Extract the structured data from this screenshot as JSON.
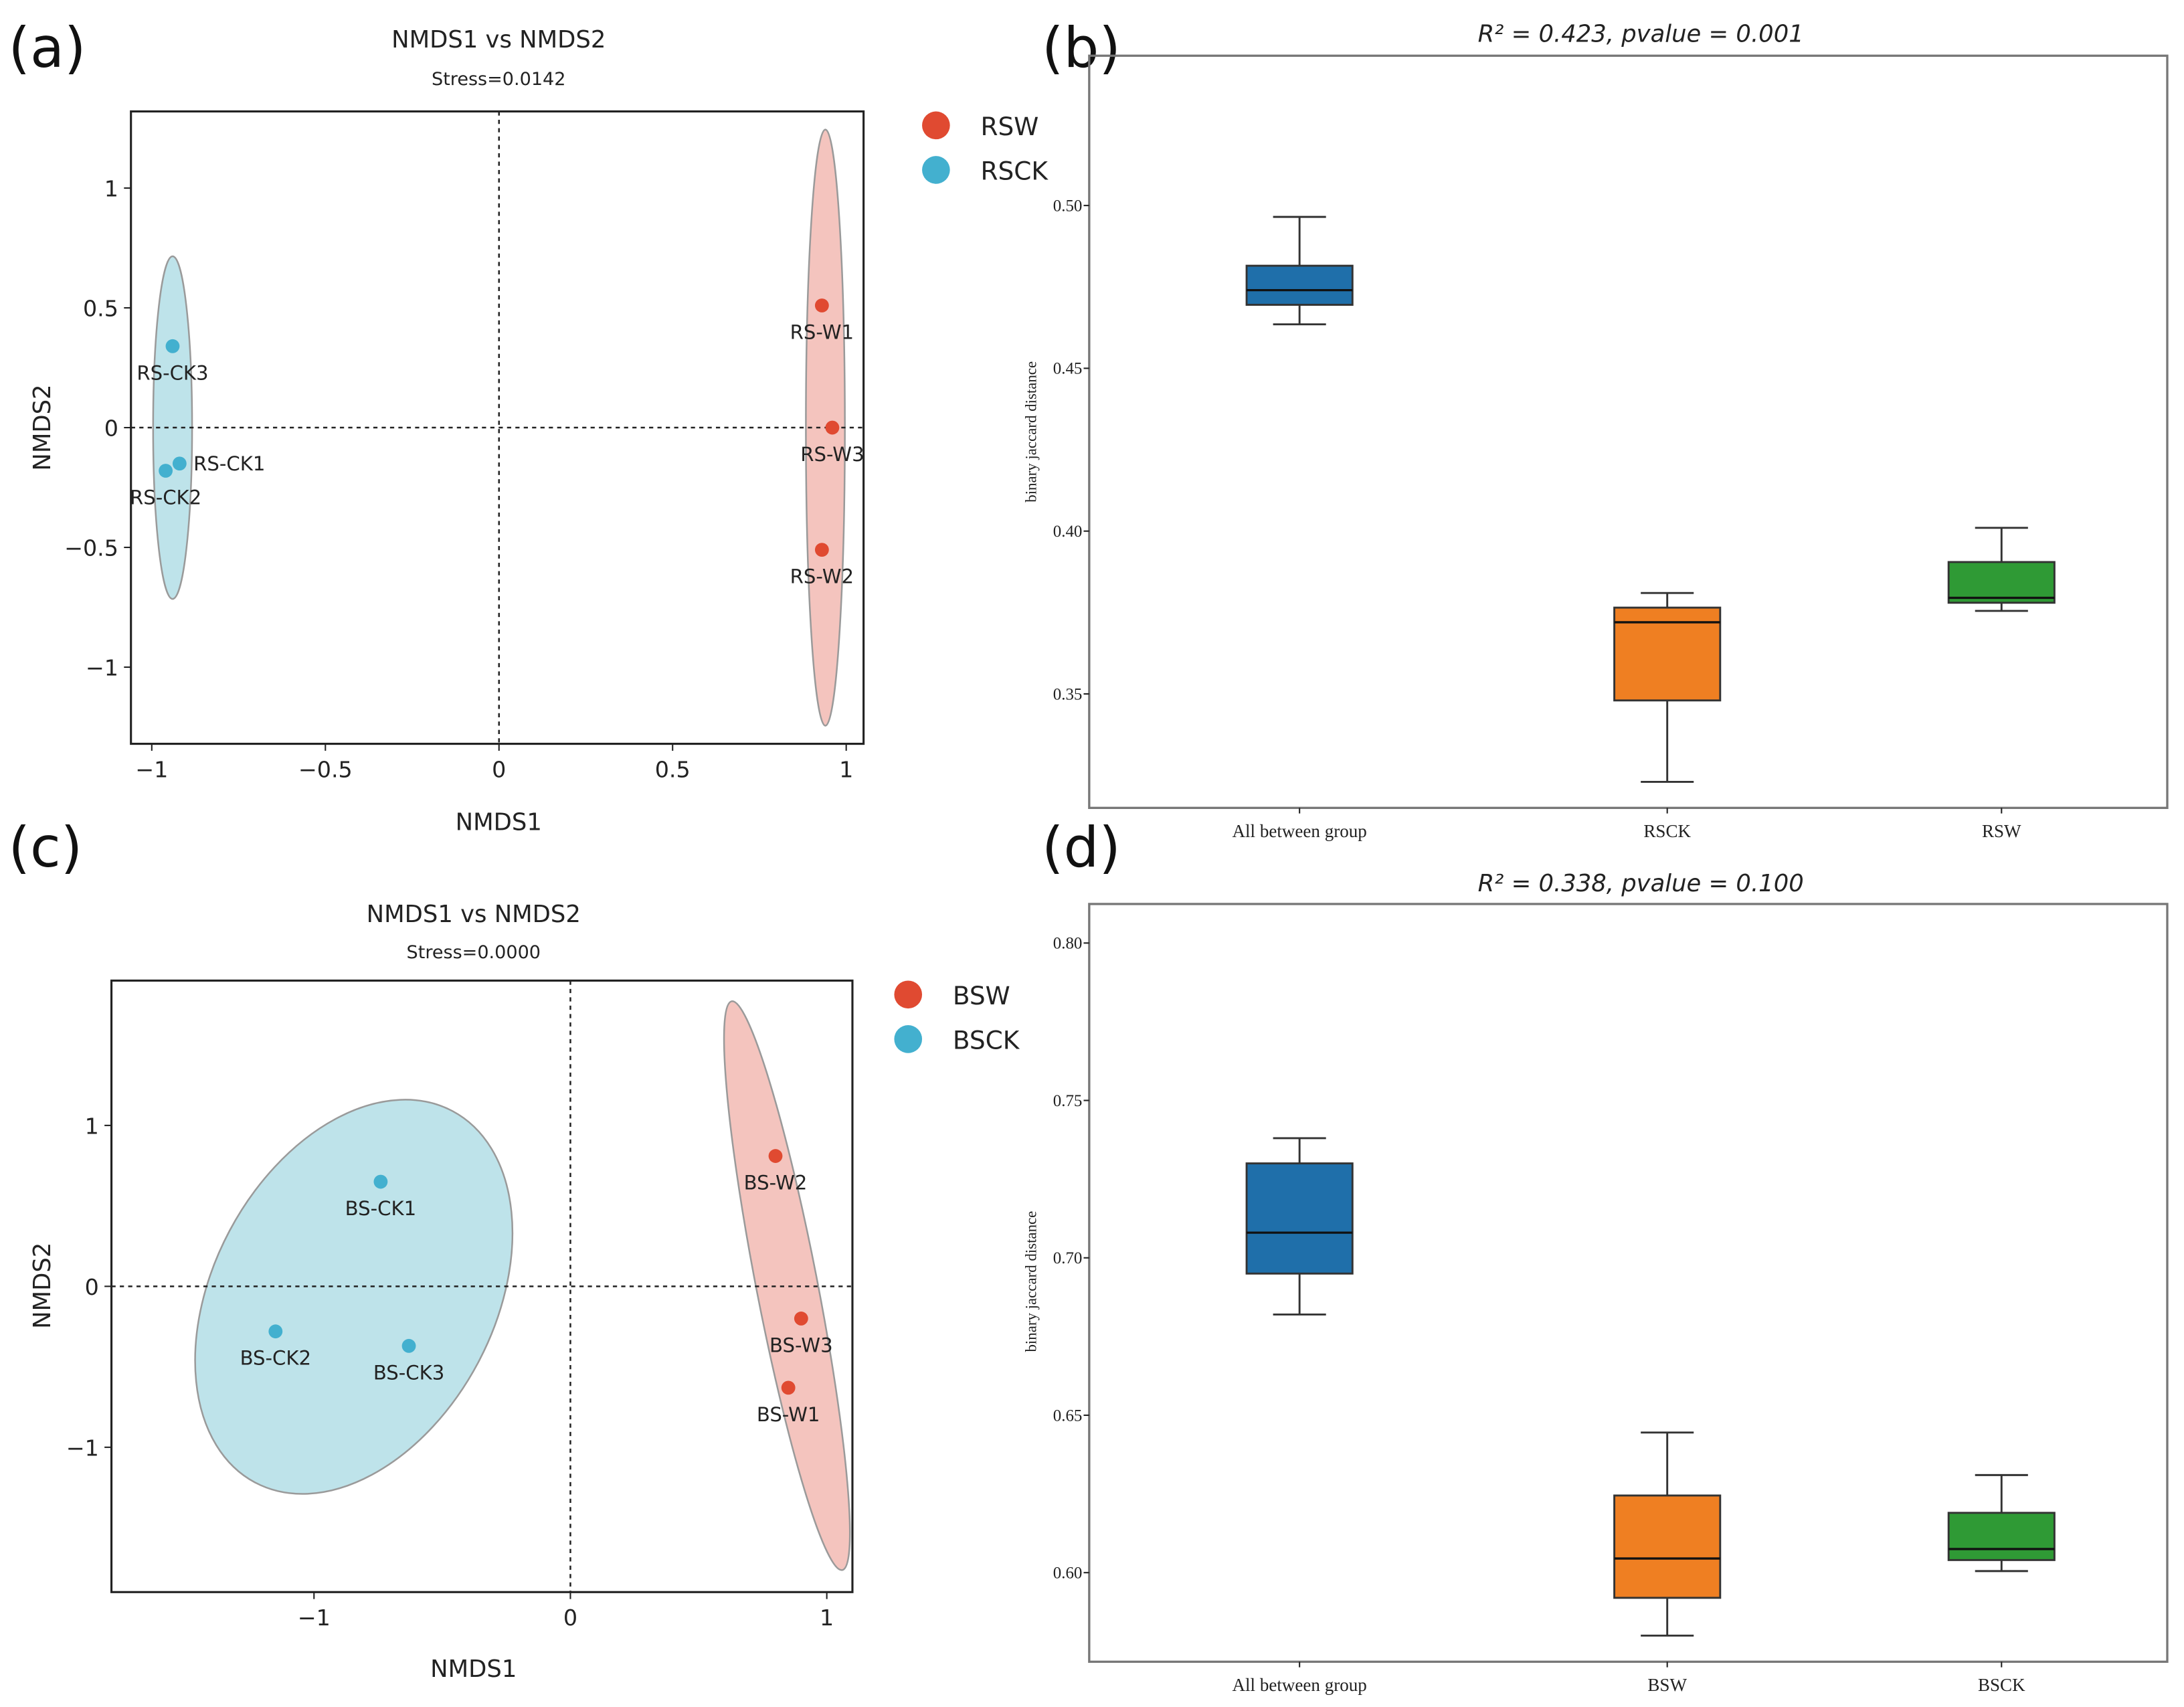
{
  "chart_data": [
    {
      "panel": "(a)",
      "type": "scatter",
      "title": "NMDS1 vs NMDS2",
      "subtitle": "Stress=0.0142",
      "xlabel": "NMDS1",
      "ylabel": "NMDS2",
      "xlim": [
        -1.06,
        1.05
      ],
      "ylim": [
        -1.32,
        1.32
      ],
      "xticks": [
        -1,
        -0.5,
        0,
        0.5,
        1
      ],
      "xtick_labels": [
        "−1",
        "−0.5",
        "0",
        "0.5",
        "1"
      ],
      "yticks": [
        -1,
        -0.5,
        0,
        0.5,
        1
      ],
      "ytick_labels": [
        "−1",
        "−0.5",
        "0",
        "0.5",
        "1"
      ],
      "legend_position": "outside-right",
      "series": [
        {
          "name": "RSW",
          "color": "#e04a31",
          "ellipse_color": "#f4c4be",
          "points": [
            {
              "label": "RS-W1",
              "x": 0.93,
              "y": 0.51
            },
            {
              "label": "RS-W3",
              "x": 0.96,
              "y": 0.0
            },
            {
              "label": "RS-W2",
              "x": 0.93,
              "y": -0.51
            }
          ]
        },
        {
          "name": "RSCK",
          "color": "#43b0cf",
          "ellipse_color": "#bee3ea",
          "points": [
            {
              "label": "RS-CK3",
              "x": -0.94,
              "y": 0.34
            },
            {
              "label": "RS-CK1",
              "x": -0.92,
              "y": -0.15
            },
            {
              "label": "RS-CK2",
              "x": -0.96,
              "y": -0.18
            }
          ]
        }
      ]
    },
    {
      "panel": "(b)",
      "type": "box",
      "title": "R² = 0.423, pvalue = 0.001",
      "ylabel": "binary jaccard distance",
      "ylim": [
        0.315,
        0.546
      ],
      "yticks": [
        0.35,
        0.4,
        0.45,
        0.5
      ],
      "ytick_labels": [
        "0.35",
        "0.40",
        "0.45",
        "0.50"
      ],
      "categories": [
        "All between group",
        "RSCK",
        "RSW"
      ],
      "colors": [
        "#1f6faa",
        "#ef7f22",
        "#2f9a35"
      ],
      "boxes": [
        {
          "whisker_low": 0.4635,
          "q1": 0.4695,
          "median": 0.474,
          "q3": 0.4815,
          "whisker_high": 0.4965
        },
        {
          "whisker_low": 0.323,
          "q1": 0.348,
          "median": 0.372,
          "q3": 0.3765,
          "whisker_high": 0.381
        },
        {
          "whisker_low": 0.3755,
          "q1": 0.378,
          "median": 0.3795,
          "q3": 0.3905,
          "whisker_high": 0.401
        }
      ]
    },
    {
      "panel": "(c)",
      "type": "scatter",
      "title": "NMDS1 vs NMDS2",
      "subtitle": "Stress=0.0000",
      "xlabel": "NMDS1",
      "ylabel": "NMDS2",
      "xlim": [
        -1.79,
        1.1
      ],
      "ylim": [
        -1.9,
        1.9
      ],
      "xticks": [
        -1,
        0,
        1
      ],
      "xtick_labels": [
        "−1",
        "0",
        "1"
      ],
      "yticks": [
        -1,
        0,
        1
      ],
      "ytick_labels": [
        "−1",
        "0",
        "1"
      ],
      "legend_position": "outside-right",
      "series": [
        {
          "name": "BSW",
          "color": "#e04a31",
          "ellipse_color": "#f4c4be",
          "points": [
            {
              "label": "BS-W2",
              "x": 0.8,
              "y": 0.81
            },
            {
              "label": "BS-W3",
              "x": 0.9,
              "y": -0.2
            },
            {
              "label": "BS-W1",
              "x": 0.85,
              "y": -0.63
            }
          ]
        },
        {
          "name": "BSCK",
          "color": "#43b0cf",
          "ellipse_color": "#bee3ea",
          "points": [
            {
              "label": "BS-CK1",
              "x": -0.74,
              "y": 0.65
            },
            {
              "label": "BS-CK2",
              "x": -1.15,
              "y": -0.28
            },
            {
              "label": "BS-CK3",
              "x": -0.63,
              "y": -0.37
            }
          ]
        }
      ]
    },
    {
      "panel": "(d)",
      "type": "box",
      "title": "R² = 0.338, pvalue = 0.100",
      "ylabel": "binary jaccard distance",
      "ylim": [
        0.5717,
        0.8124
      ],
      "yticks": [
        0.6,
        0.65,
        0.7,
        0.75,
        0.8
      ],
      "ytick_labels": [
        "0.60",
        "0.65",
        "0.70",
        "0.75",
        "0.80"
      ],
      "categories": [
        "All between group",
        "BSW",
        "BSCK"
      ],
      "colors": [
        "#1f6faa",
        "#ef7f22",
        "#2f9a35"
      ],
      "boxes": [
        {
          "whisker_low": 0.682,
          "q1": 0.695,
          "median": 0.708,
          "q3": 0.73,
          "whisker_high": 0.738
        },
        {
          "whisker_low": 0.58,
          "q1": 0.592,
          "median": 0.6045,
          "q3": 0.6245,
          "whisker_high": 0.6445
        },
        {
          "whisker_low": 0.6005,
          "q1": 0.604,
          "median": 0.6075,
          "q3": 0.619,
          "whisker_high": 0.631
        }
      ]
    }
  ]
}
